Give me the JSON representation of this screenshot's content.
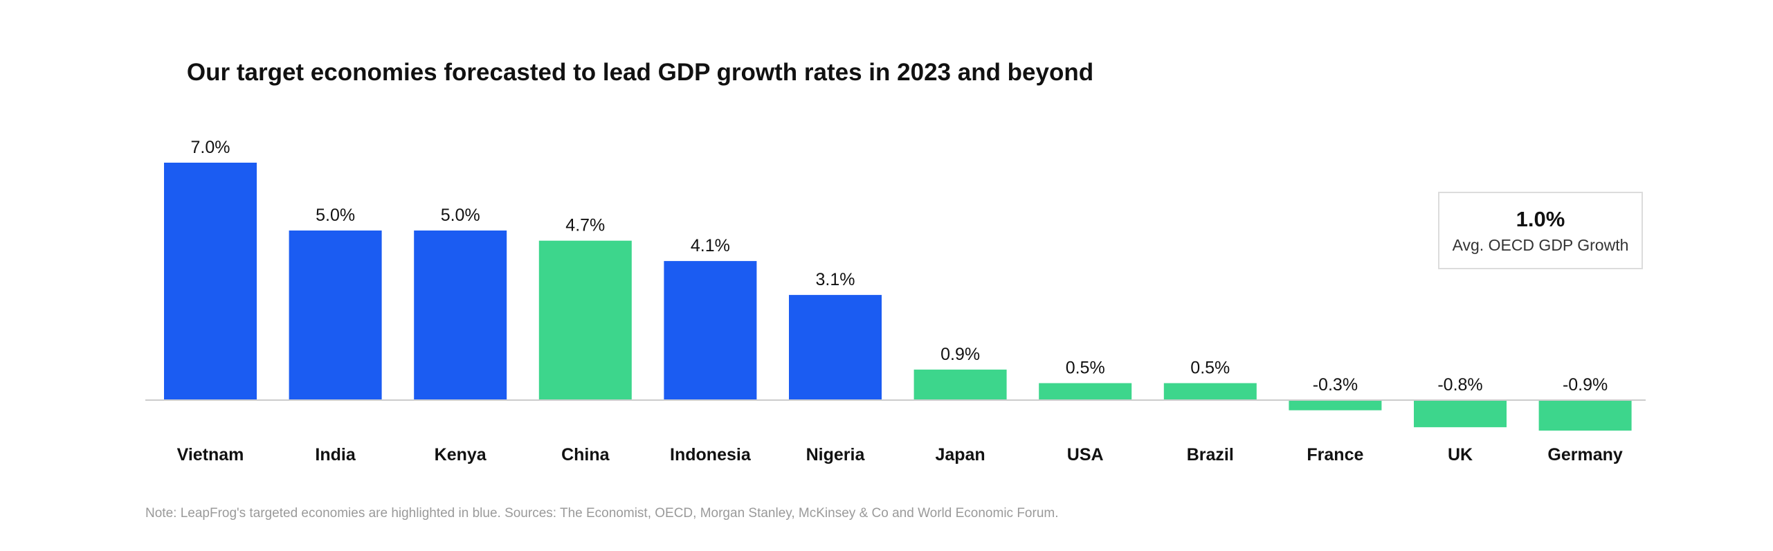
{
  "chart_data": {
    "type": "bar",
    "title": "Our target economies forecasted to lead GDP growth rates in 2023 and beyond",
    "xlabel": "",
    "ylabel": "",
    "ylim": [
      -1.0,
      7.0
    ],
    "categories": [
      "Vietnam",
      "India",
      "Kenya",
      "China",
      "Indonesia",
      "Nigeria",
      "Japan",
      "USA",
      "Brazil",
      "France",
      "UK",
      "Germany"
    ],
    "values": [
      7.0,
      5.0,
      5.0,
      4.7,
      4.1,
      3.1,
      0.9,
      0.5,
      0.5,
      -0.3,
      -0.8,
      -0.9
    ],
    "value_labels": [
      "7.0%",
      "5.0%",
      "5.0%",
      "4.7%",
      "4.1%",
      "3.1%",
      "0.9%",
      "0.5%",
      "0.5%",
      "-0.3%",
      "-0.8%",
      "-0.9%"
    ],
    "targeted": [
      true,
      true,
      true,
      false,
      true,
      true,
      false,
      false,
      false,
      false,
      false,
      false
    ],
    "grid": false,
    "colors": {
      "targeted": "#1b5cf2",
      "other": "#3dd68c",
      "baseline": "#cccccc"
    }
  },
  "avg_box": {
    "value": "1.0%",
    "label": "Avg. OECD GDP Growth"
  },
  "note": "Note: LeapFrog's targeted economies are highlighted in blue. Sources: The Economist, OECD, Morgan Stanley, McKinsey & Co and World Economic Forum."
}
